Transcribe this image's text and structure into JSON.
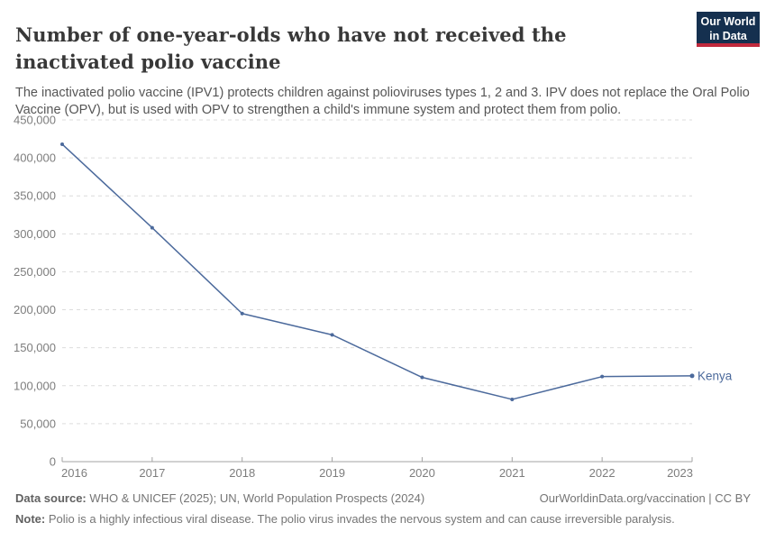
{
  "header": {
    "title": "Number of one-year-olds who have not received the inactivated polio vaccine",
    "subtitle": "The inactivated polio vaccine (IPV1) protects children against polioviruses types 1, 2 and 3. IPV does not replace the Oral Polio Vaccine (OPV), but is used with OPV to strengthen a child's immune system and protect them from polio.",
    "logo": {
      "line1": "Our World",
      "line2": "in Data",
      "bg_color": "#15304f",
      "accent_color": "#c0293d"
    }
  },
  "chart_data": {
    "type": "line",
    "title": "Number of one-year-olds who have not received the inactivated polio vaccine",
    "x": [
      2016,
      2017,
      2018,
      2019,
      2020,
      2021,
      2022,
      2023
    ],
    "series": [
      {
        "name": "Kenya",
        "color": "#4c6a9c",
        "values": [
          418000,
          308000,
          195000,
          167000,
          111000,
          82000,
          112000,
          113000
        ]
      }
    ],
    "ylim": [
      0,
      450000
    ],
    "ytick_step": 50000,
    "ytick_labels": [
      "0",
      "50,000",
      "100,000",
      "150,000",
      "200,000",
      "250,000",
      "300,000",
      "350,000",
      "400,000",
      "450,000"
    ],
    "xtick_labels": [
      "2016",
      "2017",
      "2018",
      "2019",
      "2020",
      "2021",
      "2022",
      "2023"
    ],
    "grid": "horizontal-dashed",
    "legend_position": "line-end-label"
  },
  "footer": {
    "data_source_label": "Data source:",
    "data_source": "WHO & UNICEF (2025); UN, World Population Prospects (2024)",
    "link": "OurWorldinData.org/vaccination | CC BY",
    "note_label": "Note:",
    "note": "Polio is a highly infectious viral disease. The polio virus invades the nervous system and can cause irreversible paralysis."
  }
}
